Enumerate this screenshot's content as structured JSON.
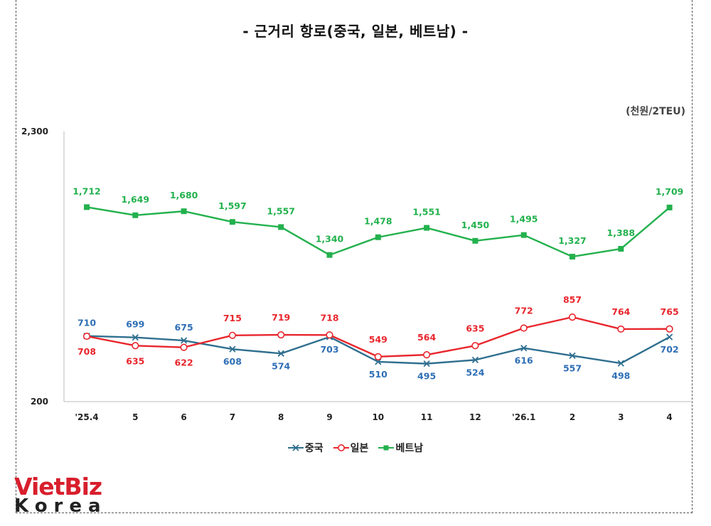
{
  "title": "-  근거리  항로(중국,  일본,  베트남)  -",
  "unit": "(천원/2TEU)",
  "logo": {
    "part1": "VietBiz",
    "part2": "Korea"
  },
  "colors": {
    "china": "#2f6f8f",
    "japan": "#e8262d",
    "vietnam": "#23b14d",
    "china_label": "#2f6fb5"
  },
  "chart_data": {
    "type": "line",
    "categories": [
      "'25.4",
      "5",
      "6",
      "7",
      "8",
      "9",
      "10",
      "11",
      "12",
      "'26.1",
      "2",
      "3",
      "4"
    ],
    "ylim": [
      200,
      2300
    ],
    "yticks": [
      "2,300",
      "200"
    ],
    "ytick_values": [
      2300,
      200
    ],
    "legend_position": "bottom",
    "grid": false,
    "series": [
      {
        "name": "중국",
        "marker": "x",
        "color": "#2f6f8f",
        "values": [
          710,
          699,
          675,
          608,
          574,
          703,
          510,
          495,
          524,
          616,
          557,
          498,
          702
        ],
        "labels": [
          "710",
          "699",
          "675",
          "608",
          "574",
          "703",
          "510",
          "495",
          "524",
          "616",
          "557",
          "498",
          "702"
        ]
      },
      {
        "name": "일본",
        "marker": "circle",
        "color": "#e8262d",
        "values": [
          708,
          635,
          622,
          715,
          719,
          718,
          549,
          564,
          635,
          772,
          857,
          764,
          765
        ],
        "labels": [
          "708",
          "635",
          "622",
          "715",
          "719",
          "718",
          "549",
          "564",
          "635",
          "772",
          "857",
          "764",
          "765"
        ]
      },
      {
        "name": "베트남",
        "marker": "square",
        "color": "#23b14d",
        "values": [
          1712,
          1649,
          1680,
          1597,
          1557,
          1340,
          1478,
          1551,
          1450,
          1495,
          1327,
          1388,
          1709
        ],
        "labels": [
          "1,712",
          "1,649",
          "1,680",
          "1,597",
          "1,557",
          "1,340",
          "1,478",
          "1,551",
          "1,450",
          "1,495",
          "1,327",
          "1,388",
          "1,709"
        ]
      }
    ]
  }
}
